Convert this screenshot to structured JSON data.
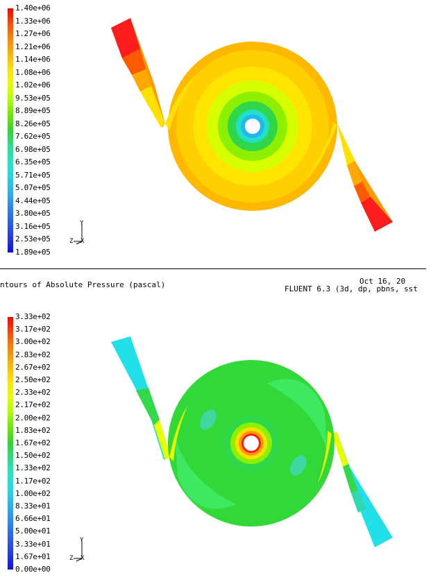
{
  "colors": {
    "background": "#ffffff",
    "legend_ramp": [
      "#ff0000",
      "#ff4a00",
      "#ff8600",
      "#ffb400",
      "#ffe000",
      "#e6ff00",
      "#b0ff00",
      "#6ae800",
      "#2fd62f",
      "#26e088",
      "#22e8c0",
      "#20d8e6",
      "#2ab2f0",
      "#2a88f4",
      "#2a60f4",
      "#2438f0",
      "#1010e8"
    ]
  },
  "top_panel": {
    "legend_labels": [
      "1.40e+06",
      "1.33e+06",
      "1.27e+06",
      "1.21e+06",
      "1.14e+06",
      "1.08e+06",
      "1.02e+06",
      "9.53e+05",
      "8.89e+05",
      "8.26e+05",
      "7.62e+05",
      "6.98e+05",
      "6.35e+05",
      "5.71e+05",
      "5.07e+05",
      "4.44e+05",
      "3.80e+05",
      "3.16e+05",
      "2.53e+05",
      "1.89e+05"
    ],
    "axis_labels": {
      "y": "Y",
      "x": "X",
      "z": "Z"
    },
    "caption_left": "ntours of Absolute Pressure (pascal)",
    "caption_date": "Oct 16, 20",
    "caption_solver": "FLUENT 6.3 (3d, dp, pbns, sst"
  },
  "bottom_panel": {
    "legend_labels": [
      "3.33e+02",
      "3.17e+02",
      "3.00e+02",
      "2.83e+02",
      "2.67e+02",
      "2.50e+02",
      "2.33e+02",
      "2.17e+02",
      "2.00e+02",
      "1.83e+02",
      "1.67e+02",
      "1.50e+02",
      "1.33e+02",
      "1.17e+02",
      "1.00e+02",
      "8.33e+01",
      "6.66e+01",
      "5.00e+01",
      "3.33e+01",
      "1.67e+01",
      "0.00e+00"
    ],
    "axis_labels": {
      "y": "Y",
      "x": "X",
      "z": "Z"
    }
  }
}
